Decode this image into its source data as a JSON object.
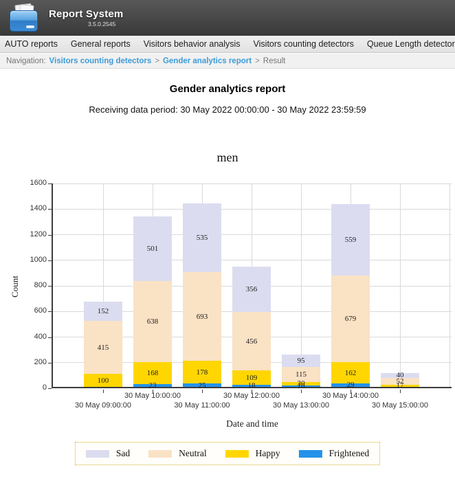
{
  "header": {
    "app_title": "Report System",
    "version": "3.5.0.2545"
  },
  "menu": {
    "items": [
      "AUTO reports",
      "General reports",
      "Visitors behavior analysis",
      "Visitors counting detectors",
      "Queue Length detectors"
    ]
  },
  "breadcrumb": {
    "label": "Navigation:",
    "separator": ">",
    "items": [
      {
        "text": "Visitors counting detectors",
        "link": true
      },
      {
        "text": "Gender analytics report",
        "link": true
      },
      {
        "text": "Result",
        "link": false
      }
    ]
  },
  "report": {
    "title": "Gender analytics report",
    "period": "Receiving data period: 30 May 2022 00:00:00 - 30 May 2022 23:59:59"
  },
  "chart_data": {
    "type": "bar",
    "stacked": true,
    "title": "men",
    "xlabel": "Date and time",
    "ylabel": "Count",
    "ylim": [
      0,
      1600
    ],
    "ytick_step": 200,
    "grid": true,
    "legend_position": "bottom",
    "categories": [
      "30 May 09:00:00",
      "30 May 10:00:00",
      "30 May 11:00:00",
      "30 May 12:00:00",
      "30 May 13:00:00",
      "30 May 14:00:00",
      "30 May 15:00:00"
    ],
    "series": [
      {
        "name": "Sad",
        "color": "#dcdcf0",
        "values": [
          152,
          501,
          535,
          356,
          95,
          559,
          40
        ]
      },
      {
        "name": "Neutral",
        "color": "#fae2c4",
        "values": [
          415,
          638,
          693,
          456,
          115,
          679,
          52
        ]
      },
      {
        "name": "Happy",
        "color": "#ffd600",
        "values": [
          100,
          168,
          178,
          109,
          30,
          162,
          17
        ]
      },
      {
        "name": "Frightened",
        "color": "#2492ea",
        "values": [
          0,
          23,
          25,
          18,
          10,
          29,
          0
        ]
      }
    ]
  }
}
